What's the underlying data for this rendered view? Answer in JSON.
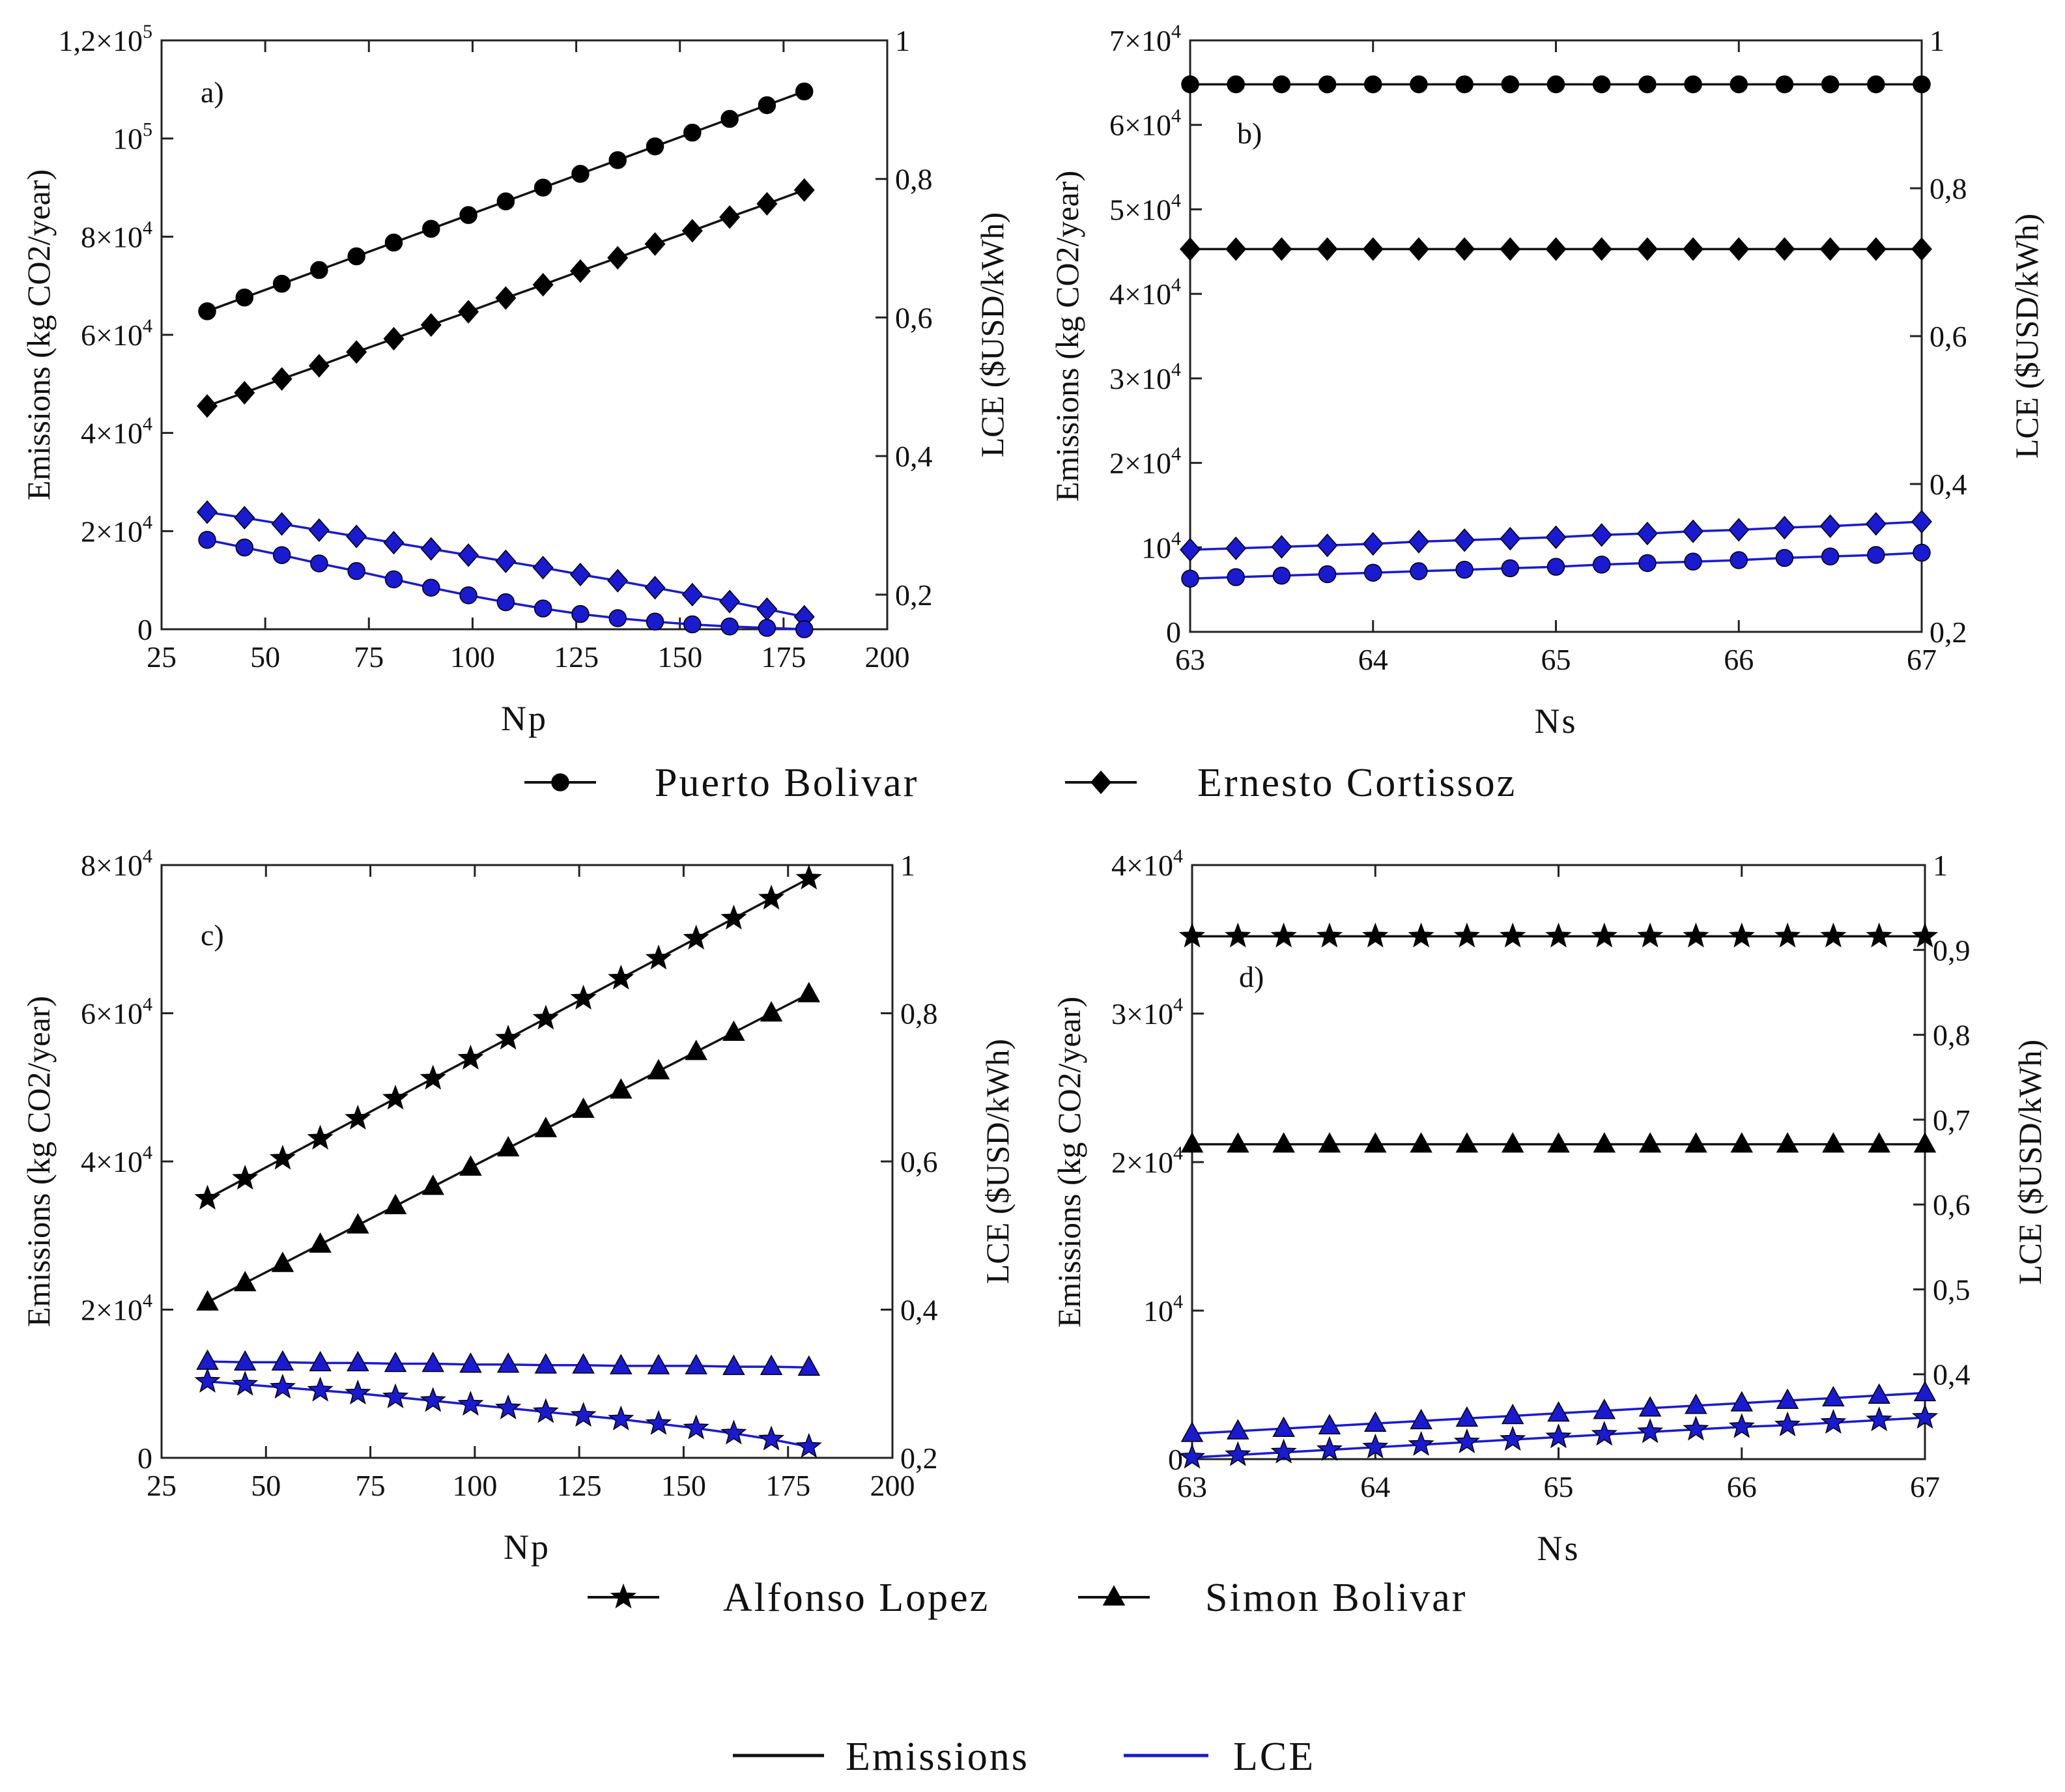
{
  "colors": {
    "emissions": "#111111",
    "lce": "#1a1ad0",
    "axis": "#222222"
  },
  "legend_sites_top": [
    {
      "label": "Puerto Bolivar",
      "marker": "circle"
    },
    {
      "label": "Ernesto Cortissoz",
      "marker": "diamond"
    }
  ],
  "legend_sites_bottom": [
    {
      "label": "Alfonso Lopez",
      "marker": "star"
    },
    {
      "label": "Simon Bolivar",
      "marker": "triangle"
    }
  ],
  "legend_metrics": [
    {
      "label": "Emissions",
      "color": "#111111"
    },
    {
      "label": "LCE",
      "color": "#1a1ad0"
    }
  ],
  "chart_data": [
    {
      "type": "line",
      "panel": "a)",
      "xlabel": "Np",
      "ylabel": "Emissions (kg CO2/year)",
      "y2label": "LCE ($USD/kWh)",
      "xlim": [
        25,
        200
      ],
      "ylim": [
        0,
        120000
      ],
      "y2lim": [
        0.15,
        1
      ],
      "xticks": [
        25,
        50,
        75,
        100,
        125,
        150,
        175,
        200
      ],
      "yticks": [
        {
          "v": 0,
          "t": "0"
        },
        {
          "v": 20000,
          "m": "2",
          "e": "4"
        },
        {
          "v": 40000,
          "m": "4",
          "e": "4"
        },
        {
          "v": 60000,
          "m": "6",
          "e": "4"
        },
        {
          "v": 80000,
          "m": "8",
          "e": "4"
        },
        {
          "v": 100000,
          "m": "10",
          "e": "5",
          "pow": true
        },
        {
          "v": 120000,
          "m": "1,2",
          "e": "5"
        }
      ],
      "y2ticks": [
        0.2,
        0.4,
        0.6,
        0.8,
        1
      ],
      "x": [
        36,
        45,
        54,
        63,
        72,
        81,
        90,
        99,
        108,
        117,
        126,
        135,
        144,
        153,
        162,
        171,
        180
      ],
      "series": [
        {
          "name": "Puerto Bolivar",
          "metric": "Emissions",
          "marker": "circle",
          "axis": "left",
          "values": [
            64800,
            67600,
            70400,
            73200,
            76000,
            78800,
            81600,
            84400,
            87200,
            90000,
            92800,
            95600,
            98400,
            101200,
            104000,
            106800,
            109600
          ]
        },
        {
          "name": "Ernesto Cortissoz",
          "metric": "Emissions",
          "marker": "diamond",
          "axis": "left",
          "values": [
            45500,
            48200,
            51000,
            53700,
            56500,
            59200,
            62000,
            64700,
            67500,
            70200,
            73000,
            75700,
            78500,
            81200,
            84000,
            86700,
            89500
          ]
        },
        {
          "name": "Ernesto Cortissoz",
          "metric": "LCE",
          "marker": "diamond",
          "axis": "right",
          "values": [
            0.319,
            0.311,
            0.302,
            0.293,
            0.284,
            0.275,
            0.266,
            0.257,
            0.248,
            0.239,
            0.229,
            0.22,
            0.21,
            0.2,
            0.19,
            0.179,
            0.168
          ]
        },
        {
          "name": "Puerto Bolivar",
          "metric": "LCE",
          "marker": "circle",
          "axis": "right",
          "values": [
            0.279,
            0.268,
            0.257,
            0.245,
            0.234,
            0.222,
            0.21,
            0.199,
            0.189,
            0.18,
            0.172,
            0.166,
            0.161,
            0.157,
            0.154,
            0.152,
            0.15
          ]
        }
      ]
    },
    {
      "type": "line",
      "panel": "b)",
      "xlabel": "Ns",
      "ylabel": "Emissions (kg CO2/year)",
      "y2label": "LCE ($USD/kWh)",
      "xlim": [
        63,
        67
      ],
      "ylim": [
        0,
        70000
      ],
      "y2lim": [
        0.2,
        1
      ],
      "xticks": [
        63,
        64,
        65,
        66,
        67
      ],
      "yticks": [
        {
          "v": 0,
          "t": "0"
        },
        {
          "v": 10000,
          "m": "10",
          "e": "4",
          "pow": true
        },
        {
          "v": 20000,
          "m": "2",
          "e": "4"
        },
        {
          "v": 30000,
          "m": "3",
          "e": "4"
        },
        {
          "v": 40000,
          "m": "4",
          "e": "4"
        },
        {
          "v": 50000,
          "m": "5",
          "e": "4"
        },
        {
          "v": 60000,
          "m": "6",
          "e": "4"
        },
        {
          "v": 70000,
          "m": "7",
          "e": "4"
        }
      ],
      "y2ticks": [
        0.2,
        0.4,
        0.6,
        0.8,
        1
      ],
      "x": [
        63,
        63.25,
        63.5,
        63.75,
        64,
        64.25,
        64.5,
        64.75,
        65,
        65.25,
        65.5,
        65.75,
        66,
        66.25,
        66.5,
        66.75,
        67
      ],
      "series": [
        {
          "name": "Puerto Bolivar",
          "metric": "Emissions",
          "marker": "circle",
          "axis": "left",
          "values": [
            64800,
            64800,
            64800,
            64800,
            64800,
            64800,
            64800,
            64800,
            64800,
            64800,
            64800,
            64800,
            64800,
            64800,
            64800,
            64800,
            64800
          ]
        },
        {
          "name": "Ernesto Cortissoz",
          "metric": "Emissions",
          "marker": "diamond",
          "axis": "left",
          "values": [
            45300,
            45300,
            45300,
            45300,
            45300,
            45300,
            45300,
            45300,
            45300,
            45300,
            45300,
            45300,
            45300,
            45300,
            45300,
            45300,
            45300
          ]
        },
        {
          "name": "Ernesto Cortissoz",
          "metric": "LCE",
          "marker": "diamond",
          "axis": "right",
          "values": [
            0.311,
            0.313,
            0.315,
            0.317,
            0.319,
            0.322,
            0.324,
            0.326,
            0.328,
            0.331,
            0.333,
            0.336,
            0.338,
            0.341,
            0.343,
            0.346,
            0.349
          ]
        },
        {
          "name": "Puerto Bolivar",
          "metric": "LCE",
          "marker": "circle",
          "axis": "right",
          "values": [
            0.272,
            0.274,
            0.276,
            0.278,
            0.28,
            0.282,
            0.284,
            0.286,
            0.288,
            0.291,
            0.293,
            0.295,
            0.297,
            0.3,
            0.302,
            0.304,
            0.307
          ]
        }
      ]
    },
    {
      "type": "line",
      "panel": "c)",
      "xlabel": "Np",
      "ylabel": "Emissions (kg CO2/year)",
      "y2label": "LCE ($USD/kWh)",
      "xlim": [
        25,
        200
      ],
      "ylim": [
        0,
        80000
      ],
      "y2lim": [
        0.2,
        1
      ],
      "xticks": [
        25,
        50,
        75,
        100,
        125,
        150,
        175,
        200
      ],
      "yticks": [
        {
          "v": 0,
          "t": "0"
        },
        {
          "v": 20000,
          "m": "2",
          "e": "4"
        },
        {
          "v": 40000,
          "m": "4",
          "e": "4"
        },
        {
          "v": 60000,
          "m": "6",
          "e": "4"
        },
        {
          "v": 80000,
          "m": "8",
          "e": "4"
        }
      ],
      "y2ticks": [
        0.2,
        0.4,
        0.6,
        0.8,
        1
      ],
      "x": [
        36,
        45,
        54,
        63,
        72,
        81,
        90,
        99,
        108,
        117,
        126,
        135,
        144,
        153,
        162,
        171,
        180
      ],
      "series": [
        {
          "name": "Alfonso Lopez",
          "metric": "Emissions",
          "marker": "star",
          "axis": "left",
          "values": [
            35000,
            37700,
            40400,
            43100,
            45800,
            48500,
            51200,
            53900,
            56600,
            59300,
            62000,
            64700,
            67400,
            70100,
            72800,
            75500,
            78200
          ]
        },
        {
          "name": "Simon Bolivar",
          "metric": "Emissions",
          "marker": "triangle",
          "axis": "left",
          "values": [
            21000,
            23600,
            26200,
            28800,
            31400,
            34000,
            36600,
            39200,
            41800,
            44400,
            47000,
            49600,
            52200,
            54800,
            57400,
            60000,
            62600
          ]
        },
        {
          "name": "Simon Bolivar",
          "metric": "LCE",
          "marker": "triangle",
          "axis": "right",
          "values": [
            0.33,
            0.329,
            0.329,
            0.328,
            0.328,
            0.327,
            0.327,
            0.326,
            0.326,
            0.325,
            0.325,
            0.324,
            0.324,
            0.324,
            0.323,
            0.323,
            0.322
          ]
        },
        {
          "name": "Alfonso Lopez",
          "metric": "LCE",
          "marker": "star",
          "axis": "right",
          "values": [
            0.303,
            0.299,
            0.295,
            0.291,
            0.287,
            0.282,
            0.277,
            0.272,
            0.267,
            0.262,
            0.257,
            0.252,
            0.246,
            0.24,
            0.233,
            0.225,
            0.215
          ]
        }
      ]
    },
    {
      "type": "line",
      "panel": "d)",
      "xlabel": "Ns",
      "ylabel": "Emissions (kg CO2/year)",
      "y2label": "LCE ($USD/kWh)",
      "xlim": [
        63,
        67
      ],
      "ylim": [
        0,
        40000
      ],
      "y2lim": [
        0.3,
        1
      ],
      "xticks": [
        63,
        64,
        65,
        66,
        67
      ],
      "yticks": [
        {
          "v": 0,
          "t": "0"
        },
        {
          "v": 10000,
          "m": "10",
          "e": "4",
          "pow": true
        },
        {
          "v": 20000,
          "m": "2",
          "e": "4"
        },
        {
          "v": 30000,
          "m": "3",
          "e": "4"
        },
        {
          "v": 40000,
          "m": "4",
          "e": "4"
        }
      ],
      "y2ticks": [
        0.4,
        0.5,
        0.6,
        0.7,
        0.8,
        0.9,
        1
      ],
      "x": [
        63,
        63.25,
        63.5,
        63.75,
        64,
        64.25,
        64.5,
        64.75,
        65,
        65.25,
        65.5,
        65.75,
        66,
        66.25,
        66.5,
        66.75,
        67
      ],
      "series": [
        {
          "name": "Alfonso Lopez",
          "metric": "Emissions",
          "marker": "star",
          "axis": "left",
          "values": [
            35200,
            35200,
            35200,
            35200,
            35200,
            35200,
            35200,
            35200,
            35200,
            35200,
            35200,
            35200,
            35200,
            35200,
            35200,
            35200,
            35200
          ]
        },
        {
          "name": "Simon Bolivar",
          "metric": "Emissions",
          "marker": "triangle",
          "axis": "left",
          "values": [
            21200,
            21200,
            21200,
            21200,
            21200,
            21200,
            21200,
            21200,
            21200,
            21200,
            21200,
            21200,
            21200,
            21200,
            21200,
            21200,
            21200
          ]
        },
        {
          "name": "Simon Bolivar",
          "metric": "LCE",
          "marker": "triangle",
          "axis": "right",
          "values": [
            0.33,
            0.333,
            0.336,
            0.339,
            0.342,
            0.345,
            0.348,
            0.351,
            0.354,
            0.357,
            0.36,
            0.363,
            0.366,
            0.369,
            0.372,
            0.375,
            0.378
          ]
        },
        {
          "name": "Alfonso Lopez",
          "metric": "LCE",
          "marker": "star",
          "axis": "right",
          "values": [
            0.302,
            0.305,
            0.308,
            0.311,
            0.314,
            0.317,
            0.32,
            0.323,
            0.326,
            0.329,
            0.332,
            0.335,
            0.338,
            0.34,
            0.343,
            0.346,
            0.349
          ]
        }
      ]
    }
  ]
}
